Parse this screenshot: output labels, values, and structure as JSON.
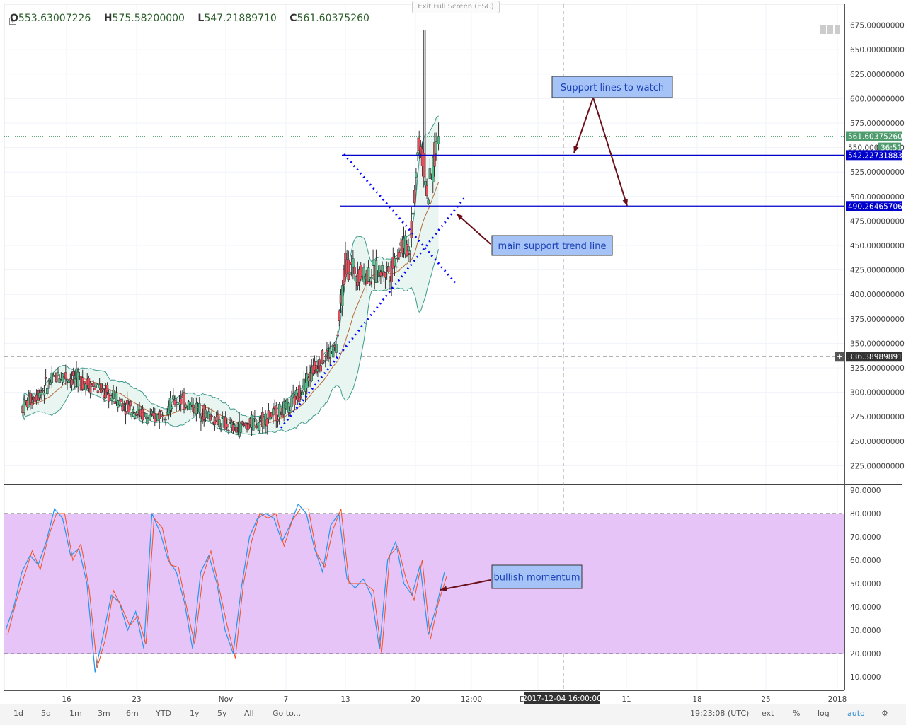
{
  "legend": {
    "open_label": "O",
    "open": "553.63007226",
    "high_label": "H",
    "high": "575.58200000",
    "low_label": "L",
    "low": "547.21889710",
    "close_label": "C",
    "close": "561.60375260"
  },
  "fullscreen_button": "Exit Full Screen (ESC)",
  "price_axis_labels": [
    "675.00000000",
    "650.00000000",
    "625.00000000",
    "600.00000000",
    "575.00000000",
    "550.00000000",
    "525.00000000",
    "500.00000000",
    "475.00000000",
    "450.00000000",
    "425.00000000",
    "400.00000000",
    "375.00000000",
    "350.00000000",
    "325.00000000",
    "300.00000000",
    "275.00000000",
    "250.00000000",
    "225.00000000"
  ],
  "osc_axis_labels": [
    "90.0000",
    "80.0000",
    "70.0000",
    "60.0000",
    "50.0000",
    "40.0000",
    "30.0000",
    "20.0000",
    "10.0000"
  ],
  "time_axis_labels": [
    "16",
    "23",
    "Nov",
    "7",
    "13",
    "20",
    "12:00",
    "D",
    "11",
    "18",
    "25",
    "2018"
  ],
  "crosshair_time": "2017-12-04 16:00:00",
  "price_badges": {
    "last_price": "561.60375260",
    "countdown": "36:51",
    "price_550": "550.000",
    "resistance": "542.22731883",
    "support": "490.26465706",
    "crosshair": "336.38989891"
  },
  "annotations": {
    "support_lines": "Support lines to watch",
    "main_trend": "main support trend line",
    "bullish": "bullish momentum"
  },
  "toolbar": {
    "items": [
      "1d",
      "5d",
      "1m",
      "3m",
      "6m",
      "YTD",
      "1y",
      "5y",
      "All",
      "Go to..."
    ],
    "time": "19:23:08 (UTC)",
    "ext": "ext",
    "percent": "%",
    "log": "log",
    "auto": "auto"
  },
  "colors": {
    "up": "#53b987",
    "down": "#eb4d5c",
    "support_line": "#0000cc",
    "trend_dots": "#0000ff",
    "annotation_fill": "#a5c3f7",
    "arrow": "#6b0f1a",
    "bb_fill": "#e8f5f0",
    "bb_line": "#3a9a8a",
    "osc_fill": "#e6c4f7",
    "stoch_k": "#2196f3",
    "stoch_d": "#f4511e"
  },
  "chart_data": [
    {
      "type": "candlestick",
      "title": "",
      "ylim": [
        200,
        685
      ],
      "horizontal_lines": [
        542.22731883,
        490.26465706
      ],
      "last_price": 561.6037526,
      "key_points": [
        {
          "x": "2017-10-09",
          "y": 285
        },
        {
          "x": "2017-10-13",
          "y": 318
        },
        {
          "x": "2017-10-16",
          "y": 310
        },
        {
          "x": "2017-10-23",
          "y": 272
        },
        {
          "x": "2017-10-26",
          "y": 293
        },
        {
          "x": "2017-11-01",
          "y": 262
        },
        {
          "x": "2017-11-04",
          "y": 272
        },
        {
          "x": "2017-11-07",
          "y": 285
        },
        {
          "x": "2017-11-10",
          "y": 330
        },
        {
          "x": "2017-11-12",
          "y": 345
        },
        {
          "x": "2017-11-13",
          "y": 430
        },
        {
          "x": "2017-11-15",
          "y": 420
        },
        {
          "x": "2017-11-18",
          "y": 425
        },
        {
          "x": "2017-11-19",
          "y": 450
        },
        {
          "x": "2017-11-20",
          "y": 448
        },
        {
          "x": "2017-11-21",
          "y": 560
        },
        {
          "x": "2017-11-22",
          "y": 500
        },
        {
          "x": "2017-11-23",
          "y": 562
        }
      ]
    },
    {
      "type": "line",
      "title": "",
      "ylim": [
        5,
        92
      ],
      "bands": [
        20,
        80
      ],
      "series": [
        {
          "values": [
            30,
            40,
            55,
            62,
            58,
            68,
            82,
            78,
            62,
            65,
            50,
            12,
            28,
            45,
            42,
            30,
            38,
            22,
            80,
            72,
            60,
            55,
            42,
            22,
            55,
            62,
            50,
            30,
            20,
            48,
            70,
            78,
            80,
            78,
            68,
            75,
            84,
            80,
            65,
            55,
            75,
            80,
            52,
            48,
            52,
            45,
            22,
            60,
            68,
            50,
            45,
            58,
            28,
            40,
            55
          ]
        }
      ]
    }
  ]
}
